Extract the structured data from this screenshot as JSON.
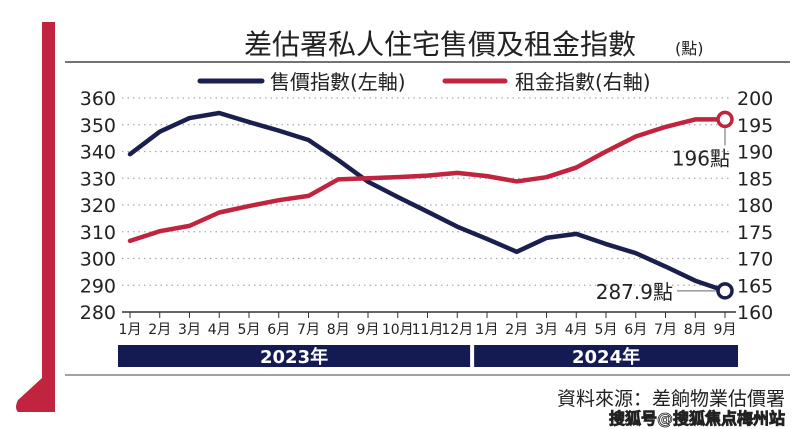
{
  "chart_data": {
    "type": "line",
    "title": "差估署私人住宅售價及租金指數",
    "title_unit": "(點)",
    "categories": [
      "1月",
      "2月",
      "3月",
      "4月",
      "5月",
      "6月",
      "7月",
      "8月",
      "9月",
      "10月",
      "11月",
      "12月",
      "1月",
      "2月",
      "3月",
      "4月",
      "5月",
      "6月",
      "7月",
      "8月",
      "9月"
    ],
    "year_groups": [
      {
        "label": "2023年",
        "count": 12
      },
      {
        "label": "2024年",
        "count": 9
      }
    ],
    "series": [
      {
        "name": "售價指數(左軸)",
        "axis": "left",
        "color": "#1a1f4d",
        "values": [
          339.0,
          347.4,
          352.5,
          354.4,
          351.0,
          347.8,
          344.3,
          336.8,
          328.7,
          323.0,
          317.5,
          311.9,
          307.3,
          302.5,
          307.7,
          309.2,
          305.4,
          302.0,
          297.0,
          291.7,
          287.9
        ]
      },
      {
        "name": "租金指數(右軸)",
        "axis": "right",
        "color": "#c0243f",
        "values": [
          173.3,
          175.1,
          176.1,
          178.6,
          179.8,
          180.9,
          181.7,
          184.8,
          185.0,
          185.2,
          185.5,
          186.0,
          185.4,
          184.4,
          185.2,
          187.0,
          190.0,
          192.8,
          194.6,
          196.0,
          196.0
        ]
      }
    ],
    "left_axis": {
      "ylim": [
        280,
        360
      ],
      "ticks": [
        "280",
        "290",
        "300",
        "310",
        "320",
        "330",
        "340",
        "350",
        "360"
      ]
    },
    "right_axis": {
      "ylim": [
        160,
        200
      ],
      "ticks": [
        "160",
        "165",
        "170",
        "175",
        "180",
        "185",
        "190",
        "195",
        "200"
      ]
    },
    "annotations": [
      {
        "series": 0,
        "label": "287.9點"
      },
      {
        "series": 1,
        "label": "196點"
      }
    ],
    "grid": "horizontal dotted",
    "legend_placement": "top",
    "source": "資料來源：差餉物業估價署"
  },
  "watermark": "搜狐号@搜狐焦点梅州站",
  "colors": {
    "accent_red": "#c0243f",
    "navy": "#1a1f4d",
    "year_bar": "#141a52"
  }
}
